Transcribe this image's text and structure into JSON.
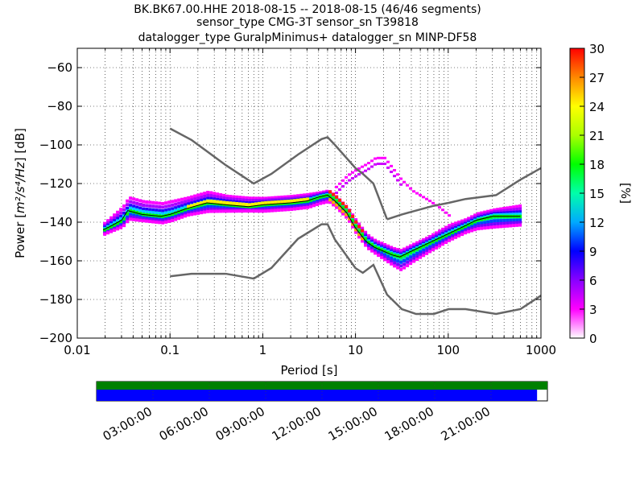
{
  "chart_data": {
    "type": "heatmap",
    "title_lines": [
      "BK.BK67.00.HHE   2018-08-15 -- 2018-08-15  (46/46 segments)",
      "sensor_type CMG-3T sensor_sn T39818",
      "datalogger_type GuralpMinimus+ datalogger_sn MINP-DF58"
    ],
    "xlabel": "Period [s]",
    "ylabel_prefix": "Power [",
    "ylabel_units": "m²/s⁴/Hz",
    "ylabel_suffix": "] [dB]",
    "x_scale": "log",
    "xlim": [
      0.01,
      1000
    ],
    "ylim": [
      -200,
      -50
    ],
    "x_ticks": [
      0.01,
      0.1,
      1,
      10,
      100,
      1000
    ],
    "x_tick_labels": [
      "0.01",
      "0.1",
      "1",
      "10",
      "100",
      "1000"
    ],
    "y_ticks": [
      -200,
      -180,
      -160,
      -140,
      -120,
      -100,
      -80,
      -60
    ],
    "y_tick_labels": [
      "−200",
      "−180",
      "−160",
      "−140",
      "−120",
      "−100",
      "−80",
      "−60"
    ],
    "grid": true,
    "colorbar": {
      "label": "[%]",
      "range": [
        0,
        30
      ],
      "ticks": [
        0,
        3,
        6,
        9,
        12,
        15,
        18,
        21,
        24,
        27,
        30
      ],
      "tick_labels": [
        "0",
        "3",
        "6",
        "9",
        "12",
        "15",
        "18",
        "21",
        "24",
        "27",
        "30"
      ],
      "colormap": [
        "#ffffff",
        "#ff00ff",
        "#8800ff",
        "#0000ff",
        "#00aaff",
        "#00ffaa",
        "#00ff00",
        "#aaff00",
        "#ffff00",
        "#ff8800",
        "#ff0000"
      ]
    },
    "noise_models": {
      "new_high_noise_model": {
        "x": [
          0.1,
          0.17,
          0.4,
          0.8,
          1.24,
          2.4,
          4.3,
          5.0,
          6.0,
          10,
          12,
          15.6,
          21.9
        ],
        "y": [
          -91.5,
          -97.4,
          -110.5,
          -120.0,
          -115.0,
          -105.0,
          -97.0,
          -96.0,
          -100.0,
          -112.0,
          -115.0,
          -120.0,
          -138.5
        ]
      },
      "new_high_noise_model_long_period": {
        "x": [
          21.9,
          31.6,
          45,
          70,
          101,
          154,
          328,
          600,
          1000
        ],
        "y": [
          -138.5,
          -136.0,
          -134.0,
          -131.5,
          -130.0,
          -128.0,
          -126.0,
          -118.0,
          -112.0
        ]
      },
      "new_low_noise_model": {
        "x": [
          0.1,
          0.17,
          0.4,
          0.8,
          1.24,
          2.4,
          4.3,
          5.0,
          6.0,
          10,
          12,
          15.6,
          21.9,
          31.6,
          45,
          70,
          101,
          154,
          328,
          600,
          1000
        ],
        "y": [
          -168.0,
          -166.7,
          -166.7,
          -169.2,
          -163.7,
          -148.6,
          -141.1,
          -141.1,
          -149.0,
          -163.8,
          -166.2,
          -162.1,
          -177.5,
          -185.0,
          -187.5,
          -187.5,
          -185.0,
          -185.0,
          -187.5,
          -185.0,
          -178.0
        ]
      }
    },
    "mode_line": {
      "x": [
        0.019,
        0.023,
        0.03,
        0.035,
        0.05,
        0.08,
        0.1,
        0.15,
        0.25,
        0.4,
        0.7,
        1.0,
        2.0,
        3.0,
        4.0,
        5.0,
        6.0,
        8.0,
        10,
        13,
        16,
        20,
        25,
        30,
        40,
        60,
        100,
        150,
        200,
        300,
        600
      ],
      "y": [
        -144,
        -142,
        -139,
        -134,
        -136,
        -137,
        -136,
        -133,
        -130,
        -131,
        -132,
        -131,
        -130,
        -129,
        -127,
        -126,
        -129,
        -135,
        -143,
        -150,
        -153,
        -155,
        -157,
        -158,
        -155,
        -151,
        -146,
        -142,
        -139,
        -137,
        -137
      ]
    },
    "density_series": [
      {
        "name": "mode",
        "color": "#00ff00",
        "x": [
          0.019,
          0.023,
          0.03,
          0.035,
          0.05,
          0.08,
          0.1,
          0.15,
          0.25,
          0.4,
          0.7,
          1.0,
          2.0,
          3.0,
          4.0,
          5.0,
          6.0,
          8.0,
          10,
          13,
          16,
          20,
          25,
          30,
          40,
          60,
          100,
          150,
          200,
          300,
          600
        ],
        "y": [
          -144,
          -142,
          -139,
          -134,
          -136,
          -137,
          -136,
          -133,
          -130,
          -131,
          -132,
          -131,
          -130,
          -129,
          -127,
          -126,
          -129,
          -135,
          -143,
          -150,
          -153,
          -155,
          -157,
          -158,
          -155,
          -151,
          -146,
          -142,
          -139,
          -137,
          -137
        ]
      },
      {
        "name": "upper",
        "color": "#aa00ff",
        "x": [
          0.019,
          0.03,
          0.035,
          0.05,
          0.08,
          0.1,
          0.15,
          0.25,
          0.4,
          0.7,
          1.0,
          2.0,
          3.0,
          4.0,
          5.0,
          6.0,
          8.0,
          10,
          13,
          16,
          20,
          25,
          30,
          40,
          60,
          100,
          150,
          200,
          300,
          600
        ],
        "y": [
          -141,
          -133,
          -128,
          -130,
          -131,
          -130,
          -128,
          -125,
          -127,
          -128,
          -128,
          -127,
          -126,
          -125,
          -125,
          -128,
          -133,
          -140,
          -147,
          -150,
          -152,
          -154,
          -155,
          -152,
          -148,
          -142,
          -139,
          -136,
          -134,
          -132
        ]
      },
      {
        "name": "lower",
        "color": "#0055ff",
        "x": [
          0.019,
          0.03,
          0.035,
          0.05,
          0.08,
          0.1,
          0.15,
          0.25,
          0.4,
          0.7,
          1.0,
          2.0,
          3.0,
          4.0,
          5.0,
          6.0,
          8.0,
          10,
          13,
          16,
          20,
          25,
          30,
          40,
          60,
          100,
          150,
          200,
          300,
          600
        ],
        "y": [
          -146,
          -142,
          -138,
          -139,
          -140,
          -139,
          -136,
          -134,
          -134,
          -134,
          -134,
          -133,
          -132,
          -130,
          -129,
          -132,
          -138,
          -146,
          -153,
          -156,
          -159,
          -162,
          -164,
          -160,
          -155,
          -149,
          -145,
          -143,
          -142,
          -141
        ]
      },
      {
        "name": "outlier",
        "color": "#ff00ff",
        "x": [
          6.0,
          8.0,
          10,
          13,
          16,
          20,
          25,
          30,
          40,
          60,
          80,
          100
        ],
        "y": [
          -122,
          -116,
          -113,
          -110,
          -107,
          -107,
          -113,
          -118,
          -124,
          -129,
          -133,
          -137
        ]
      }
    ],
    "segments": {
      "time_ticks": [
        "03:00:00",
        "06:00:00",
        "09:00:00",
        "12:00:00",
        "15:00:00",
        "18:00:00",
        "21:00:00"
      ],
      "upper_bar": {
        "start_hour": 0,
        "end_hour": 24,
        "color": "#008000"
      },
      "lower_bar": {
        "start_hour": 0,
        "end_hour": 23.45,
        "color": "#0000ff"
      }
    }
  }
}
